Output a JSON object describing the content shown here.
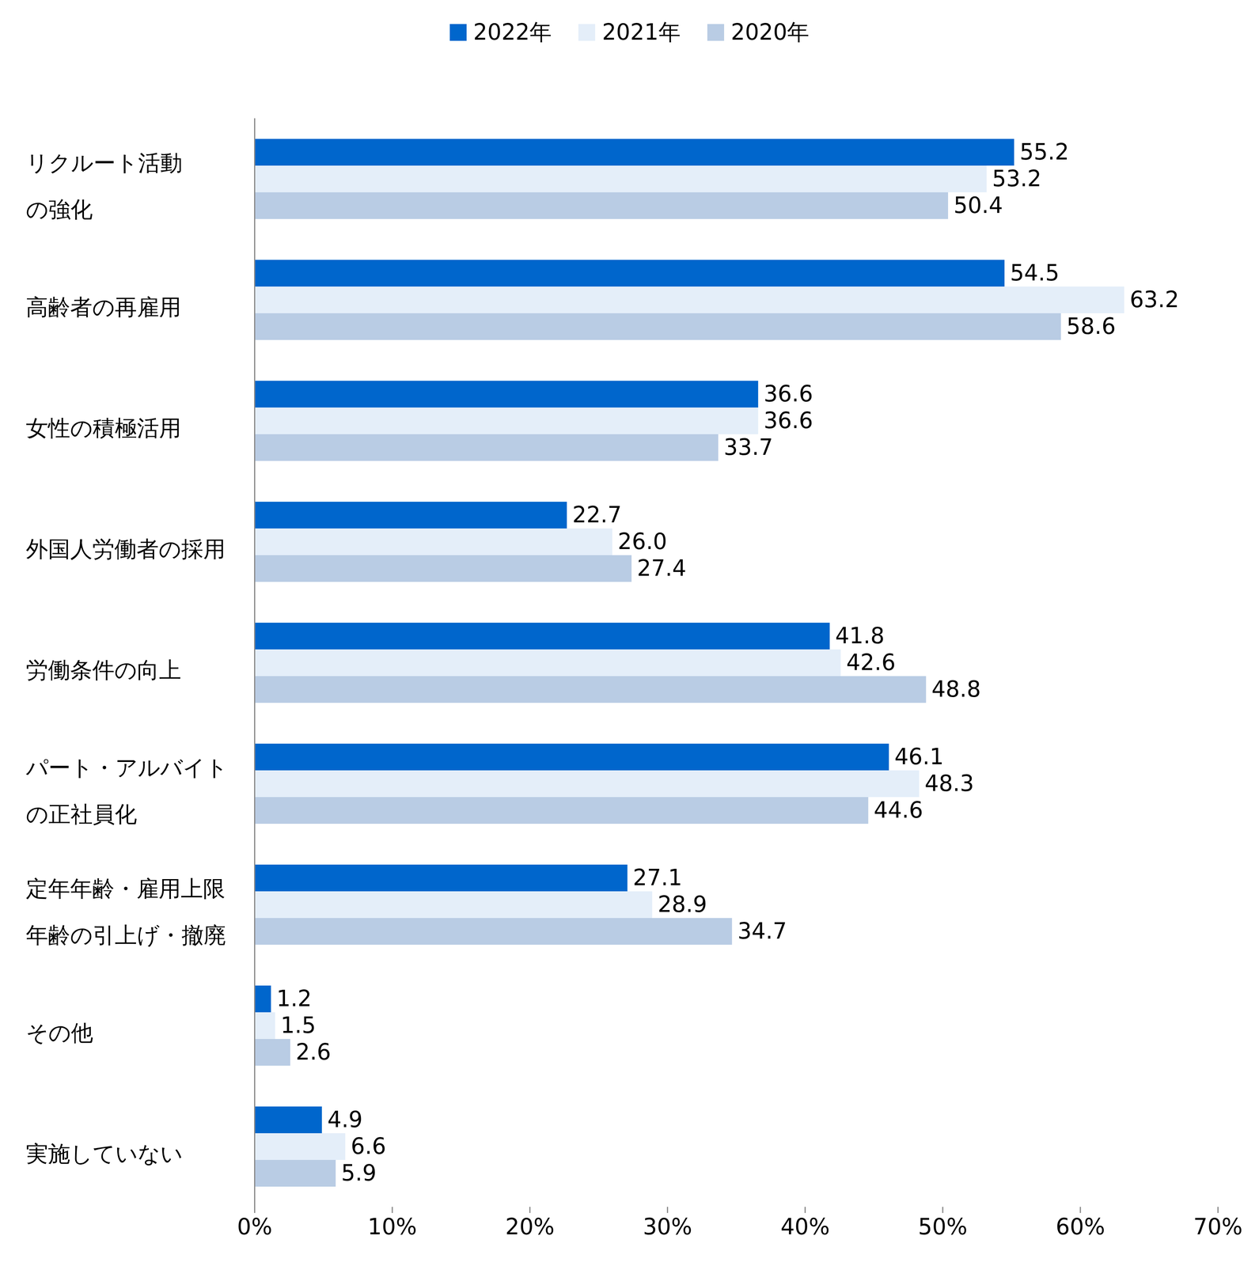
{
  "chart_data": {
    "type": "bar",
    "orientation": "horizontal",
    "legend": "top",
    "data_labels": true,
    "categories": [
      "リクルート活動\nの強化",
      "高齢者の再雇用",
      "女性の積極活用",
      "外国人労働者の採用",
      "労働条件の向上",
      "パート・アルバイト\nの正社員化",
      "定年年齢・雇用上限\n年齢の引上げ・撤廃",
      "その他",
      "実施していない"
    ],
    "series": [
      {
        "name": "2022年",
        "color": "#0066cc",
        "values": [
          55.2,
          54.5,
          36.6,
          22.7,
          41.8,
          46.1,
          27.1,
          1.2,
          4.9
        ],
        "value_labels": [
          "55.2",
          "54.5",
          "36.6",
          "22.7",
          "41.8",
          "46.1",
          "27.1",
          "1.2",
          "4.9"
        ]
      },
      {
        "name": "2021年",
        "color": "#e4eef9",
        "values": [
          53.2,
          63.2,
          36.6,
          26.0,
          42.6,
          48.3,
          28.9,
          1.5,
          6.6
        ],
        "value_labels": [
          "53.2",
          "63.2",
          "36.6",
          "26.0",
          "42.6",
          "48.3",
          "28.9",
          "1.5",
          "6.6"
        ]
      },
      {
        "name": "2020年",
        "color": "#b9cce4",
        "values": [
          50.4,
          58.6,
          33.7,
          27.4,
          48.8,
          44.6,
          34.7,
          2.6,
          5.9
        ],
        "value_labels": [
          "50.4",
          "58.6",
          "33.7",
          "27.4",
          "48.8",
          "44.6",
          "34.7",
          "2.6",
          "5.9"
        ]
      }
    ],
    "xlim": [
      0,
      70
    ],
    "xticks": [
      {
        "value": 0,
        "label": "0%"
      },
      {
        "value": 10,
        "label": "10%"
      },
      {
        "value": 20,
        "label": "20%"
      },
      {
        "value": 30,
        "label": "30%"
      },
      {
        "value": 40,
        "label": "40%"
      },
      {
        "value": 50,
        "label": "50%"
      },
      {
        "value": 60,
        "label": "60%"
      },
      {
        "value": 70,
        "label": "70%"
      }
    ]
  }
}
